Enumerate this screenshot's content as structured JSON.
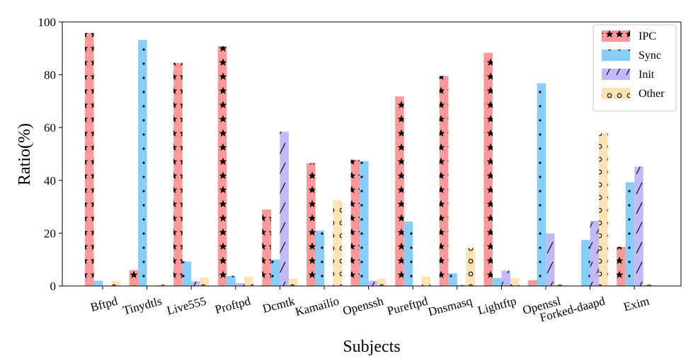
{
  "chart_data": {
    "type": "bar",
    "title": "",
    "xlabel": "Subjects",
    "ylabel": "Ratio(%)",
    "ylim": [
      0,
      100
    ],
    "yticks": [
      0,
      20,
      40,
      60,
      80,
      100
    ],
    "grid": false,
    "legend_position": "top-right",
    "categories": [
      "Bftpd",
      "Tinydtls",
      "Live555",
      "Proftpd",
      "Dcmtk",
      "Kamailio",
      "Openssh",
      "Pureftpd",
      "Dnsmasq",
      "Lightftp",
      "Openssl",
      "Forked-daapd",
      "Exim"
    ],
    "series": [
      {
        "name": "IPC",
        "color": "#ff9999",
        "pattern": "stars",
        "values": [
          95.8,
          6,
          84.5,
          90.8,
          29,
          46.5,
          47.8,
          71.8,
          79.5,
          88.3,
          2.2,
          0,
          14.8
        ]
      },
      {
        "name": "Sync",
        "color": "#87cefa",
        "pattern": "dots",
        "values": [
          2,
          93.2,
          9.3,
          3.8,
          10,
          21,
          47.3,
          24.4,
          4.8,
          3,
          76.8,
          17.4,
          39.3
        ]
      },
      {
        "name": "Init",
        "color": "#c3b8f8",
        "pattern": "slash",
        "values": [
          0,
          0,
          1.8,
          1,
          58.4,
          0,
          2,
          0,
          0.4,
          5.8,
          19.9,
          24.7,
          45.2
        ]
      },
      {
        "name": "Other",
        "color": "#fde3b3",
        "pattern": "rings",
        "values": [
          2,
          0.5,
          3.2,
          3.5,
          2.8,
          32.5,
          2.8,
          3.5,
          14.4,
          3,
          0.5,
          57.8,
          0.5
        ]
      }
    ]
  }
}
